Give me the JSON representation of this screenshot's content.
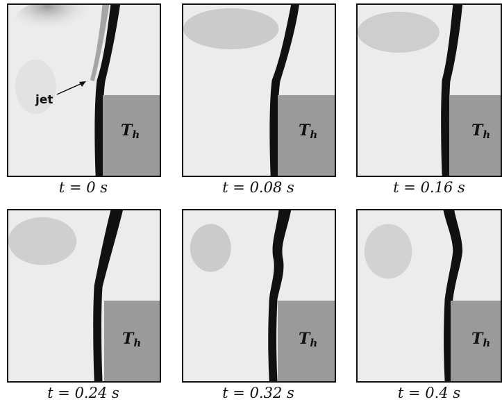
{
  "figure": {
    "block_label": {
      "symbol": "T",
      "subscript": "h"
    },
    "annotation": "jet",
    "panels": [
      {
        "time_label": "t = 0 s",
        "t": 0
      },
      {
        "time_label": "t = 0.08 s",
        "t": 0.08
      },
      {
        "time_label": "t = 0.16 s",
        "t": 0.16
      },
      {
        "time_label": "t = 0.24 s",
        "t": 0.24
      },
      {
        "time_label": "t = 0.32 s",
        "t": 0.32
      },
      {
        "time_label": "t = 0.4 s",
        "t": 0.4
      }
    ]
  }
}
